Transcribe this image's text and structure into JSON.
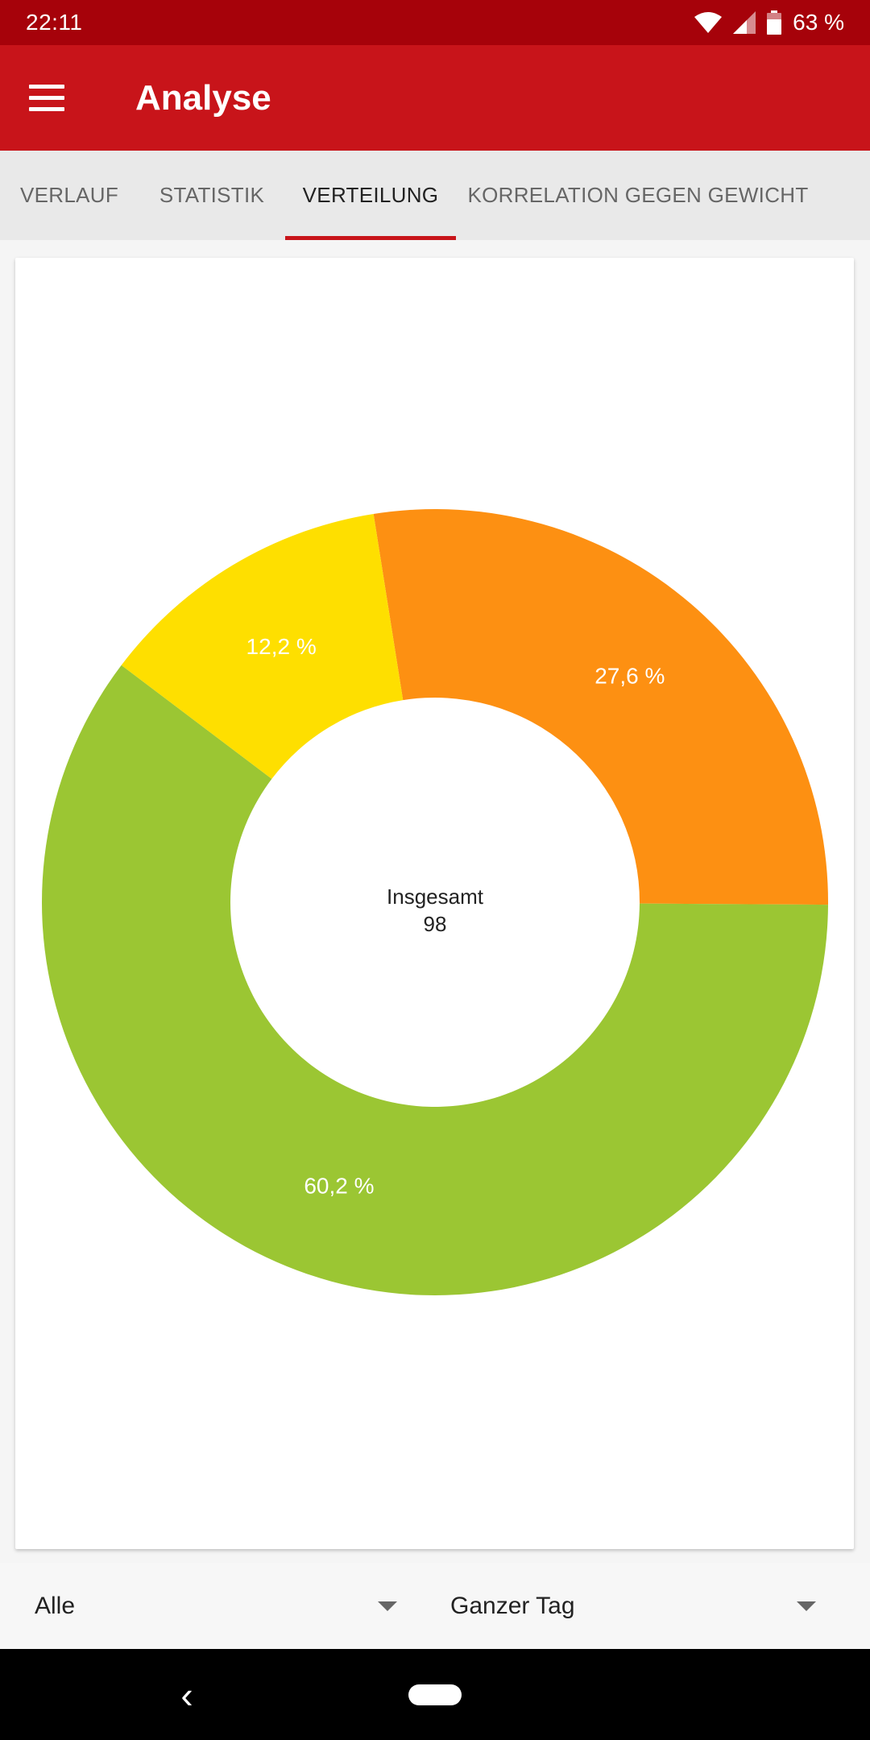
{
  "status_bar": {
    "time": "22:11",
    "battery": "63 %"
  },
  "app_bar": {
    "title": "Analyse",
    "menu_icon": "hamburger-menu-icon"
  },
  "tabs": [
    {
      "label": "VERLAUF",
      "active": false
    },
    {
      "label": "STATISTIK",
      "active": false
    },
    {
      "label": "VERTEILUNG",
      "active": true
    },
    {
      "label": "KORRELATION GEGEN GEWICHT",
      "active": false
    }
  ],
  "colors": {
    "primary": "#c8141a",
    "primary_dark": "#a6020a",
    "green": "#9bc633",
    "orange": "#fd9012",
    "yellow": "#fedf00"
  },
  "chart_data": {
    "type": "pie",
    "donut": true,
    "slices": [
      {
        "value": 27.6,
        "label": "27,6 %",
        "color": "#fd9012"
      },
      {
        "value": 60.2,
        "label": "60,2 %",
        "color": "#9bc633"
      },
      {
        "value": 12.2,
        "label": "12,2 %",
        "color": "#fedf00"
      }
    ],
    "center_label": "Insgesamt",
    "center_value": "98"
  },
  "filters": {
    "category": "Alle",
    "time_range": "Ganzer Tag"
  }
}
